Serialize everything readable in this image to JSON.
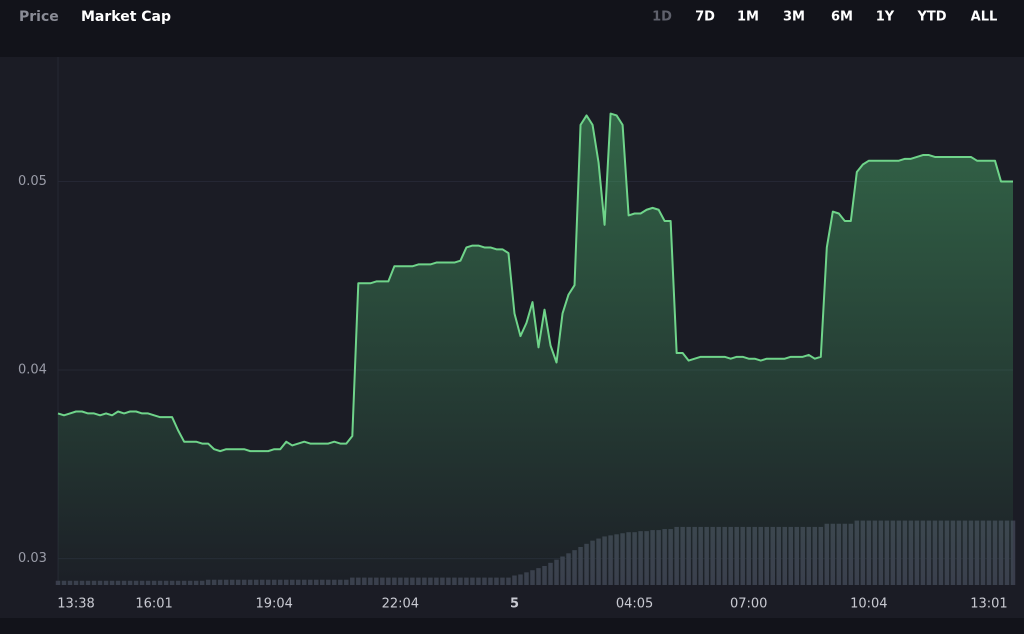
{
  "tabs": [
    "Price",
    "Market Cap"
  ],
  "active_tab": 1,
  "ranges": [
    "1D",
    "7D",
    "1M",
    "3M",
    "6M",
    "1Y",
    "YTD",
    "ALL"
  ],
  "active_range": 0,
  "chart_data": {
    "type": "area",
    "categories": [
      null,
      null,
      null,
      "13:38",
      null,
      null,
      null,
      null,
      null,
      null,
      null,
      null,
      null,
      null,
      null,
      null,
      "16:01",
      null,
      null,
      null,
      null,
      null,
      null,
      null,
      null,
      null,
      null,
      null,
      null,
      null,
      null,
      null,
      null,
      null,
      null,
      null,
      "19:04",
      null,
      null,
      null,
      null,
      null,
      null,
      null,
      null,
      null,
      null,
      null,
      null,
      null,
      null,
      null,
      null,
      null,
      null,
      null,
      null,
      "22:04",
      null,
      null,
      null,
      null,
      null,
      null,
      null,
      null,
      null,
      null,
      null,
      null,
      null,
      null,
      null,
      null,
      null,
      null,
      "5",
      null,
      null,
      null,
      null,
      null,
      null,
      null,
      null,
      null,
      null,
      null,
      null,
      null,
      null,
      null,
      null,
      null,
      null,
      null,
      "04:05",
      null,
      null,
      null,
      null,
      null,
      null,
      null,
      null,
      null,
      null,
      null,
      null,
      null,
      null,
      null,
      null,
      null,
      null,
      "07:00",
      null,
      null,
      null,
      null,
      null,
      null,
      null,
      null,
      null,
      null,
      null,
      null,
      null,
      null,
      null,
      null,
      null,
      null,
      null,
      "10:04",
      null,
      null,
      null,
      null,
      null,
      null,
      null,
      null,
      null,
      null,
      null,
      null,
      null,
      null,
      null,
      null,
      null,
      null,
      null,
      "13:01",
      null,
      null,
      null,
      null
    ],
    "series": [
      {
        "color": "#6fd48a",
        "values": [
          0.0377,
          0.0376,
          0.0377,
          0.0378,
          0.0378,
          0.0377,
          0.0377,
          0.0376,
          0.0377,
          0.0376,
          0.0378,
          0.0377,
          0.0378,
          0.0378,
          0.0377,
          0.0377,
          0.0376,
          0.0375,
          0.0375,
          0.0375,
          0.0368,
          0.0362,
          0.0362,
          0.0362,
          0.0361,
          0.0361,
          0.0358,
          0.0357,
          0.0358,
          0.0358,
          0.0358,
          0.0358,
          0.0357,
          0.0357,
          0.0357,
          0.0357,
          0.0358,
          0.0358,
          0.0362,
          0.036,
          0.0361,
          0.0362,
          0.0361,
          0.0361,
          0.0361,
          0.0361,
          0.0362,
          0.0361,
          0.0361,
          0.0365,
          0.0446,
          0.0446,
          0.0446,
          0.0447,
          0.0447,
          0.0447,
          0.0455,
          0.0455,
          0.0455,
          0.0455,
          0.0456,
          0.0456,
          0.0456,
          0.0457,
          0.0457,
          0.0457,
          0.0457,
          0.0458,
          0.0465,
          0.0466,
          0.0466,
          0.0465,
          0.0465,
          0.0464,
          0.0464,
          0.0462,
          0.043,
          0.0418,
          0.0425,
          0.0436,
          0.0412,
          0.0432,
          0.0413,
          0.0404,
          0.043,
          0.044,
          0.0445,
          0.053,
          0.0535,
          0.053,
          0.051,
          0.0477,
          0.0536,
          0.0535,
          0.053,
          0.0482,
          0.0483,
          0.0483,
          0.0485,
          0.0486,
          0.0485,
          0.0479,
          0.0479,
          0.0409,
          0.0409,
          0.0405,
          0.0406,
          0.0407,
          0.0407,
          0.0407,
          0.0407,
          0.0407,
          0.0406,
          0.0407,
          0.0407,
          0.0406,
          0.0406,
          0.0405,
          0.0406,
          0.0406,
          0.0406,
          0.0406,
          0.0407,
          0.0407,
          0.0407,
          0.0408,
          0.0406,
          0.0407,
          0.0465,
          0.0484,
          0.0483,
          0.0479,
          0.0479,
          0.0505,
          0.0509,
          0.0511,
          0.0511,
          0.0511,
          0.0511,
          0.0511,
          0.0511,
          0.0512,
          0.0512,
          0.0513,
          0.0514,
          0.0514,
          0.0513,
          0.0513,
          0.0513,
          0.0513,
          0.0513,
          0.0513,
          0.0513,
          0.0511,
          0.0511,
          0.0511,
          0.0511,
          0.05,
          0.05,
          0.05
        ]
      },
      {
        "type": "bar",
        "axis": "y2",
        "color": "#3a3d4c",
        "values": [
          4,
          4,
          4,
          4,
          4,
          4,
          4,
          4,
          4,
          4,
          4,
          4,
          4,
          4,
          4,
          4,
          4,
          4,
          4,
          4,
          4,
          4,
          4,
          4,
          4,
          5,
          5,
          5,
          5,
          5,
          5,
          5,
          5,
          5,
          5,
          5,
          5,
          5,
          5,
          5,
          5,
          5,
          5,
          5,
          5,
          5,
          5,
          5,
          5,
          7,
          7,
          7,
          7,
          7,
          7,
          7,
          7,
          7,
          7,
          7,
          7,
          7,
          7,
          7,
          7,
          7,
          7,
          7,
          7,
          7,
          7,
          7,
          7,
          7,
          7,
          7,
          9,
          10,
          12,
          14,
          16,
          18,
          21,
          24,
          27,
          30,
          33,
          36,
          39,
          42,
          44,
          46,
          47,
          48,
          49,
          50,
          50,
          51,
          51,
          52,
          52,
          53,
          53,
          55,
          55,
          55,
          55,
          55,
          55,
          55,
          55,
          55,
          55,
          55,
          55,
          55,
          55,
          55,
          55,
          55,
          55,
          55,
          55,
          55,
          55,
          55,
          55,
          55,
          58,
          58,
          58,
          58,
          58,
          61,
          61,
          61,
          61,
          61,
          61,
          61,
          61,
          61,
          61,
          61,
          61,
          61,
          61,
          61,
          61,
          61,
          61,
          61,
          61,
          61,
          61,
          61,
          61,
          61,
          61,
          61
        ]
      }
    ],
    "ylim": [
      0.0286,
      0.0566
    ],
    "yticks": [
      0.03,
      0.04,
      0.05
    ],
    "y2lim": [
      0,
      500
    ],
    "grid": true
  }
}
